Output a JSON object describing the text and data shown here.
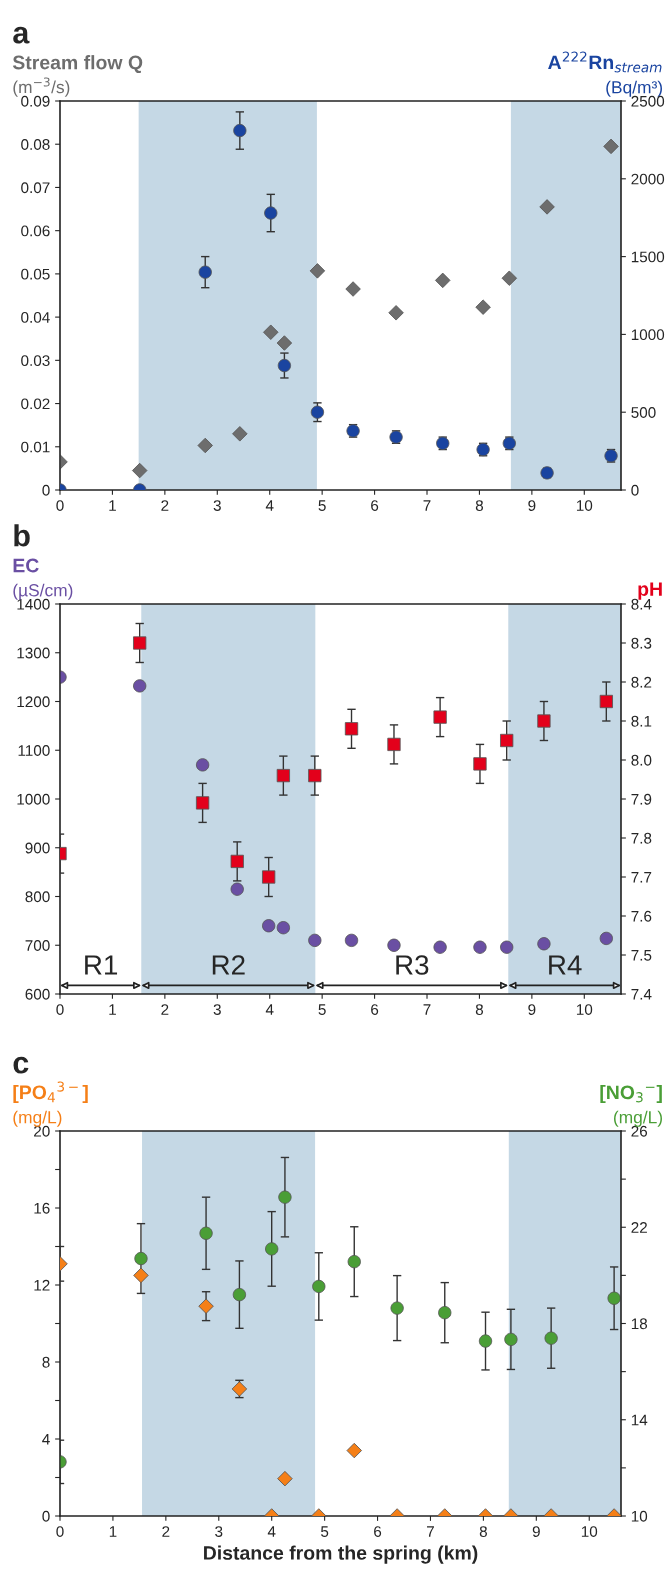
{
  "chart_data": [
    {
      "type": "scatter",
      "title": "a",
      "ylabel": "Stream flow Q\n(m$^{−3}$/s)",
      "y2label": "A$^{222}$Rn$_{stream}$\n(Bq/m³)",
      "xlim": [
        0,
        10.7
      ],
      "xticks": [
        0,
        1,
        2,
        3,
        4,
        5,
        6,
        7,
        8,
        9,
        10
      ],
      "ylim": [
        0,
        0.09
      ],
      "yticks": [
        0,
        0.01,
        0.02,
        0.03,
        0.04,
        0.05,
        0.06,
        0.07,
        0.08,
        0.09
      ],
      "y2lim": [
        0,
        2500
      ],
      "y2ticks": [
        0,
        500,
        1000,
        1500,
        2000,
        2500
      ],
      "grid": false,
      "legend": false,
      "bands": [
        {
          "axis": "x",
          "from": 1.5,
          "to": 4.9,
          "color": "#c5d8e5"
        },
        {
          "axis": "x",
          "from": 8.6,
          "to": 10.7,
          "color": "#c5d8e5"
        }
      ],
      "x": [
        0,
        1.52,
        2.77,
        3.43,
        4.02,
        4.28,
        4.91,
        5.59,
        6.41,
        7.3,
        8.07,
        8.57,
        9.29,
        10.51
      ],
      "series": [
        {
          "color": "#6d6d6d",
          "marker": "diamond",
          "values": [
            0.0065,
            0.0045,
            0.0103,
            0.013,
            0.0365,
            0.034,
            0.0507,
            0.0465,
            0.041,
            0.0485,
            0.0423,
            0.049,
            0.0655,
            0.0795
          ]
        },
        {
          "color": "#1a44a0",
          "marker": "circle",
          "axis": "y2",
          "values": [
            0,
            0,
            1400,
            2310,
            1780,
            800,
            500,
            380,
            340,
            300,
            260,
            300,
            110,
            220
          ],
          "errors": [
            null,
            null,
            100,
            120,
            120,
            80,
            60,
            40,
            40,
            40,
            40,
            40,
            30,
            40
          ]
        }
      ]
    },
    {
      "type": "scatter",
      "title": "b",
      "ylabel": "EC\n(µS/cm)",
      "y2label": "pH",
      "xlim": [
        0,
        10.7
      ],
      "xticks": [
        0,
        1,
        2,
        3,
        4,
        5,
        6,
        7,
        8,
        9,
        10
      ],
      "ylim": [
        600,
        1400
      ],
      "yticks": [
        600,
        700,
        800,
        900,
        1000,
        1100,
        1200,
        1300,
        1400
      ],
      "y2lim": [
        7.4,
        8.4
      ],
      "y2ticks": [
        7.4,
        7.5,
        7.6,
        7.7,
        7.8,
        7.9,
        {
          "value": 8.0,
          "label": "8.0"
        },
        8.1,
        8.2,
        8.3,
        8.4
      ],
      "grid": false,
      "legend": false,
      "bands": [
        {
          "axis": "x",
          "from": 1.55,
          "to": 4.87,
          "color": "#c5d8e5"
        },
        {
          "axis": "x",
          "from": 8.55,
          "to": 10.7,
          "color": "#c5d8e5"
        }
      ],
      "annotations": [
        "R1",
        "R2",
        "R3",
        "R4"
      ],
      "x": [
        0,
        1.52,
        2.72,
        3.38,
        3.98,
        4.26,
        4.86,
        5.56,
        6.37,
        7.25,
        8.01,
        8.52,
        9.23,
        10.42
      ],
      "series": [
        {
          "color": "#6a4fa3",
          "marker": "circle",
          "values": [
            1250,
            1232,
            1070,
            815,
            740,
            736,
            710,
            710,
            700,
            696,
            696,
            696,
            703,
            714
          ]
        },
        {
          "color": "#e3001b",
          "marker": "square",
          "axis": "y2",
          "values": [
            7.76,
            8.3,
            7.89,
            7.74,
            7.7,
            7.96,
            7.96,
            8.08,
            8.04,
            8.11,
            7.99,
            8.05,
            8.1,
            8.15
          ],
          "errors": [
            0.05,
            0.05,
            0.05,
            0.05,
            0.05,
            0.05,
            0.05,
            0.05,
            0.05,
            0.05,
            0.05,
            0.05,
            0.05,
            0.05
          ]
        }
      ]
    },
    {
      "type": "scatter",
      "title": "c",
      "xlabel": "Distance from the spring (km)",
      "ylabel": "[PO$_{4}$$^{3−}$]\n(mg/L)",
      "y2label": "[NO$_{3}$$^{−}$]\n(mg/L)",
      "xlim": [
        0,
        10.6
      ],
      "xticks": [
        0,
        1,
        2,
        3,
        4,
        5,
        6,
        7,
        8,
        9,
        10
      ],
      "ylim": [
        0,
        20
      ],
      "yticks": [
        0,
        {
          "value": 2,
          "label": null
        },
        4,
        {
          "value": 6,
          "label": null
        },
        8,
        {
          "value": 10,
          "label": null
        },
        12,
        {
          "value": 14,
          "label": null
        },
        16,
        {
          "value": 18,
          "label": null
        },
        20
      ],
      "y2lim": [
        10,
        26
      ],
      "y2ticks": [
        10,
        {
          "value": 12,
          "label": null
        },
        14,
        {
          "value": 16,
          "label": null
        },
        18,
        {
          "value": 20,
          "label": null
        },
        22,
        {
          "value": 24,
          "label": null
        },
        26
      ],
      "grid": false,
      "legend": false,
      "bands": [
        {
          "axis": "x",
          "from": 1.55,
          "to": 4.82,
          "color": "#c5d8e5"
        },
        {
          "axis": "x",
          "from": 8.48,
          "to": 10.6,
          "color": "#c5d8e5"
        }
      ],
      "x": [
        0,
        1.53,
        2.76,
        3.39,
        4.0,
        4.25,
        4.89,
        5.56,
        6.37,
        7.27,
        8.04,
        8.52,
        9.28,
        10.47
      ],
      "series": [
        {
          "color": "#4a9e36",
          "marker": "circle",
          "axis": "y2",
          "values": [
            12.25,
            20.7,
            21.75,
            19.2,
            21.1,
            23.25,
            19.54,
            20.57,
            18.64,
            18.45,
            17.27,
            17.34,
            17.39,
            19.05
          ],
          "errors": [
            0.9,
            1.45,
            1.5,
            1.4,
            1.55,
            1.65,
            1.4,
            1.45,
            1.35,
            1.25,
            1.2,
            1.25,
            1.25,
            1.3
          ]
        },
        {
          "color": "#f57f17",
          "marker": "diamond",
          "values": [
            13.1,
            12.5,
            10.9,
            6.6,
            0,
            1.94,
            0,
            3.4,
            0,
            0,
            0,
            0,
            0,
            0
          ],
          "errors": [
            0.9,
            null,
            0.75,
            0.45,
            null,
            null,
            null,
            null,
            null,
            null,
            null,
            null,
            null,
            null
          ]
        }
      ]
    }
  ]
}
